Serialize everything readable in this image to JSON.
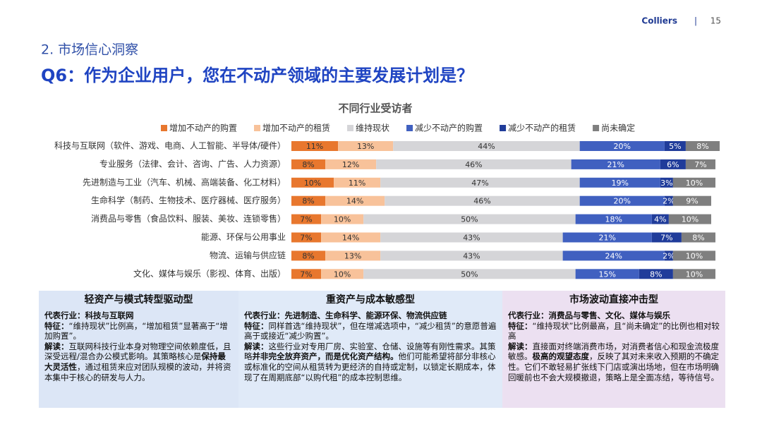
{
  "header": {
    "brand": "Colliers",
    "separator": "|",
    "page": "15",
    "section": "2. 市场信心洞察",
    "title": "Q6：作为企业用户，您在不动产领域的主要发展计划是？"
  },
  "chart_data": {
    "type": "stacked-bar-horizontal",
    "title": "不同行业受访者",
    "categories": [
      "科技与互联网（软件、游戏、电商、人工智能、半导体/硬件）",
      "专业服务（法律、会计、咨询、广告、人力资源）",
      "先进制造与工业（汽车、机械、高端装备、化工材料）",
      "生命科学（制药、生物技术、医疗器械、医疗服务）",
      "消费品与零售（食品饮料、服装、美妆、连锁零售）",
      "能源、环保与公用事业",
      "物流、运输与供应链",
      "文化、媒体与娱乐（影视、体育、出版）"
    ],
    "series": [
      {
        "name": "增加不动产的购置",
        "color": "#e8772e",
        "label_color": "#333333",
        "values": [
          11,
          8,
          10,
          8,
          7,
          7,
          8,
          7
        ],
        "value_labels": [
          "11%",
          "8%",
          "10%",
          "8%",
          "7%",
          "7%",
          "8%",
          "7%"
        ]
      },
      {
        "name": "增加不动产的租赁",
        "color": "#f8c29a",
        "label_color": "#333333",
        "values": [
          13,
          12,
          11,
          14,
          10,
          14,
          13,
          10
        ],
        "value_labels": [
          "13%",
          "12%",
          "11%",
          "14%",
          "10%",
          "14%",
          "13%",
          "10%"
        ]
      },
      {
        "name": "维持现状",
        "color": "#d5d5d8",
        "label_color": "#333333",
        "values": [
          44,
          46,
          47,
          46,
          50,
          43,
          43,
          50
        ],
        "value_labels": [
          "44%",
          "46%",
          "47%",
          "46%",
          "50%",
          "43%",
          "43%",
          "50%"
        ]
      },
      {
        "name": "减少不动产的购置",
        "color": "#4060c0",
        "label_color": "#ffffff",
        "values": [
          20,
          21,
          19,
          20,
          18,
          21,
          24,
          15
        ],
        "value_labels": [
          "20%",
          "21%",
          "19%",
          "20%",
          "18%",
          "21%",
          "24%",
          "15%"
        ]
      },
      {
        "name": "减少不动产的租赁",
        "color": "#203c9a",
        "label_color": "#ffffff",
        "values": [
          5,
          6,
          3,
          2,
          4,
          7,
          2,
          8
        ],
        "value_labels": [
          "5%",
          "6%",
          "3%",
          "2%",
          "4%",
          "7%",
          "2%",
          "8%"
        ]
      },
      {
        "name": "尚未确定",
        "color": "#7f7f7f",
        "label_color": "#ffffff",
        "values": [
          8,
          7,
          10,
          9,
          10,
          8,
          10,
          10
        ],
        "value_labels": [
          "8%",
          "7%",
          "10%",
          "9%",
          "10%",
          "8%",
          "10%",
          "10%"
        ]
      }
    ]
  },
  "boxes": [
    {
      "title": "轻资产与模式转型驱动型",
      "color": "#dce6f6",
      "paragraphs": [
        [
          {
            "text": "代表行业：科技与互联网",
            "bold": true
          }
        ],
        [
          {
            "text": "特征：",
            "bold": true
          },
          {
            "text": "“维持现状”比例高，“增加租赁”显著高于“增加购置”。",
            "bold": false
          }
        ],
        [
          {
            "text": "解读：",
            "bold": true
          },
          {
            "text": "互联网科技行业本身对物理空间依赖度低，且深受远程/混合办公模式影响。其策略核心是",
            "bold": false
          },
          {
            "text": "保持最大灵活性",
            "bold": true
          },
          {
            "text": "，通过租赁来应对团队规模的波动，并将资本集中于核心的研发与人力。",
            "bold": false
          }
        ]
      ]
    },
    {
      "title": "重资产与成本敏感型",
      "color": "#e0eaf8",
      "paragraphs": [
        [
          {
            "text": "代表行业：先进制造、生命科学、能源环保、物流供应链",
            "bold": true
          }
        ],
        [
          {
            "text": "特征：",
            "bold": true
          },
          {
            "text": "同样首选“维持现状”，但在增减选项中，“减少租赁”的意愿普遍高于或接近“减少购置”。",
            "bold": false
          }
        ],
        [
          {
            "text": "解读：",
            "bold": true
          },
          {
            "text": "这些行业对专用厂房、实验室、仓储、设施等有刚性需求。其策略",
            "bold": false
          },
          {
            "text": "并非完全放弃资产，而是优化资产结构。",
            "bold": true
          },
          {
            "text": "他们可能希望将部分非核心或标准化的空间从租赁转为更经济的自持或定制，以锁定长期成本，体现了在周期底部“以购代租”的成本控制思维。",
            "bold": false
          }
        ]
      ]
    },
    {
      "title": "市场波动直接冲击型",
      "color": "#ece0f1",
      "paragraphs": [
        [
          {
            "text": "代表行业：消费品与零售、文化、媒体与娱乐",
            "bold": true
          }
        ],
        [
          {
            "text": "特征：",
            "bold": true
          },
          {
            "text": "“维持现状”比例最高，且“尚未确定”的比例也相对较高",
            "bold": false
          }
        ],
        [
          {
            "text": "解读：",
            "bold": true
          },
          {
            "text": "直接面对终端消费市场，对消费者信心和现金流极度敏感。",
            "bold": false
          },
          {
            "text": "极高的观望态度",
            "bold": true
          },
          {
            "text": "，反映了其对未来收入预期的不确定性。它们不敢轻易扩张线下门店或演出场地，但在市场明确回暖前也不会大规模撤退，策略上是全面冻结，等待信号。",
            "bold": false
          }
        ]
      ]
    }
  ]
}
